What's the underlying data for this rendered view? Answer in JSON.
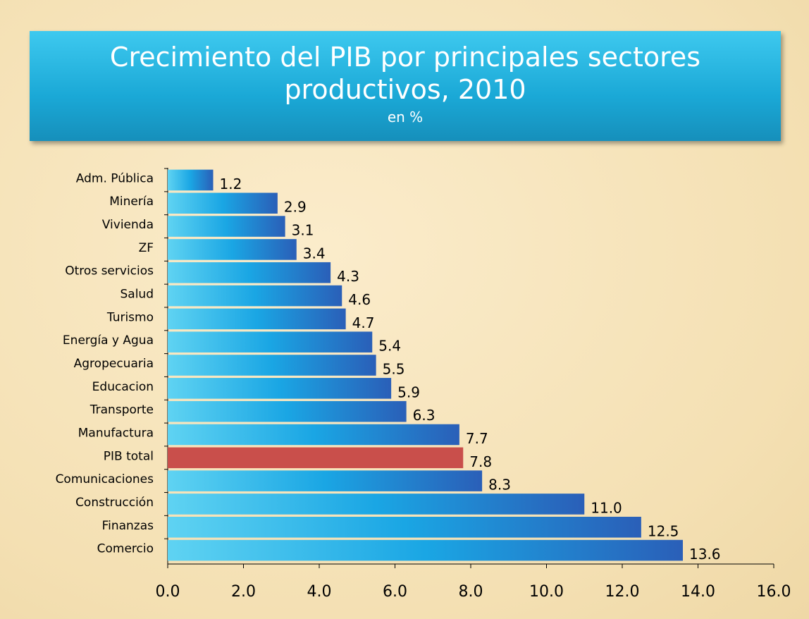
{
  "chart_data": {
    "type": "barh",
    "title": "Crecimiento del PIB por principales sectores productivos, 2010",
    "subtitle": "en %",
    "categories": [
      "Adm. Pública",
      "Minería",
      "Vivienda",
      "ZF",
      "Otros servicios",
      "Salud",
      "Turismo",
      "Energía y Agua",
      "Agropecuaria",
      "Educacion",
      "Transporte",
      "Manufactura",
      "PIB total",
      "Comunicaciones",
      "Construcción",
      "Finanzas",
      "Comercio"
    ],
    "values": [
      1.2,
      2.9,
      3.1,
      3.4,
      4.3,
      4.6,
      4.7,
      5.4,
      5.5,
      5.9,
      6.3,
      7.7,
      7.8,
      8.3,
      11.0,
      12.5,
      13.6
    ],
    "value_labels": [
      "1.2",
      "2.9",
      "3.1",
      "3.4",
      "4.3",
      "4.6",
      "4.7",
      "5.4",
      "5.5",
      "5.9",
      "6.3",
      "7.7",
      "7.8",
      "8.3",
      "11.0",
      "12.5",
      "13.6"
    ],
    "colors": [
      "#1e9fe0",
      "#1e9fe0",
      "#1e9fe0",
      "#1e9fe0",
      "#1e9fe0",
      "#1e9fe0",
      "#1e9fe0",
      "#1e9fe0",
      "#1e9fe0",
      "#1e9fe0",
      "#1e9fe0",
      "#1e9fe0",
      "#c94f4b",
      "#1e9fe0",
      "#1e9fe0",
      "#1e9fe0",
      "#1e9fe0"
    ],
    "xlim": [
      0,
      16
    ],
    "xticks": [
      {
        "value": 0,
        "label": "0.0"
      },
      {
        "value": 2,
        "label": "2.0"
      },
      {
        "value": 4,
        "label": "4.0"
      },
      {
        "value": 6,
        "label": "6.0"
      },
      {
        "value": 8,
        "label": "8.0"
      },
      {
        "value": 10,
        "label": "10.0"
      },
      {
        "value": 12,
        "label": "12.0"
      },
      {
        "value": 14,
        "label": "14.0"
      },
      {
        "value": 16,
        "label": "16.0"
      }
    ]
  }
}
